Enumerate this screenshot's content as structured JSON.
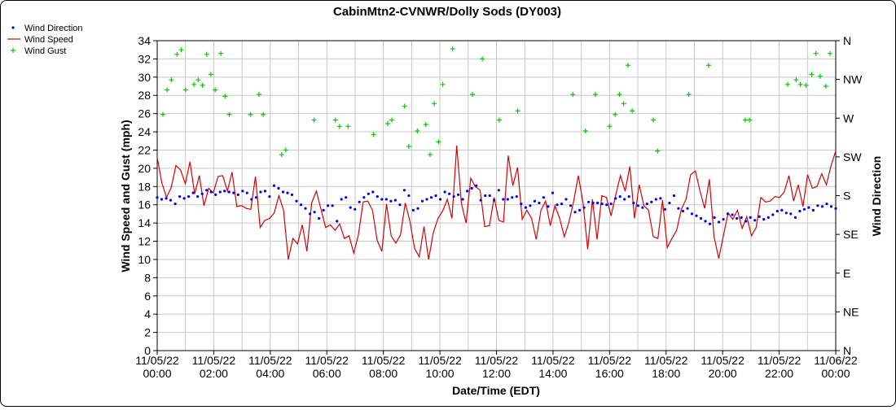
{
  "chart_data": {
    "type": "line",
    "title": "CabinMtn2-CVNWR/Dolly Sods (DY003)",
    "xlabel": "Date/Time (EDT)",
    "ylabel_left": "Wind Speed and Gust (mph)",
    "ylabel_right": "Wind Direction",
    "ylim": [
      0,
      34
    ],
    "xlim_hours": [
      0,
      24
    ],
    "grid": true,
    "legend_position": "top-left",
    "y_ticks": [
      "0",
      "2",
      "4",
      "6",
      "8",
      "10",
      "12",
      "14",
      "16",
      "18",
      "20",
      "22",
      "24",
      "26",
      "28",
      "30",
      "32",
      "34"
    ],
    "y2_ticks": [
      "N",
      "NE",
      "E",
      "SE",
      "S",
      "SW",
      "W",
      "NW",
      "N"
    ],
    "x_tick_labels": [
      [
        "11/05/22",
        "00:00"
      ],
      [
        "11/05/22",
        "02:00"
      ],
      [
        "11/05/22",
        "04:00"
      ],
      [
        "11/05/22",
        "06:00"
      ],
      [
        "11/05/22",
        "08:00"
      ],
      [
        "11/05/22",
        "10:00"
      ],
      [
        "11/05/22",
        "12:00"
      ],
      [
        "11/05/22",
        "14:00"
      ],
      [
        "11/05/22",
        "16:00"
      ],
      [
        "11/05/22",
        "18:00"
      ],
      [
        "11/05/22",
        "20:00"
      ],
      [
        "11/05/22",
        "22:00"
      ],
      [
        "11/06/22",
        "00:00"
      ]
    ],
    "series": [
      {
        "name": "Wind Direction",
        "color": "#0000ff",
        "marker": "dot",
        "values": [
          16.8,
          16.6,
          16.7,
          16.5,
          16.1,
          16.9,
          16.7,
          16.9,
          17.3,
          16.9,
          17.2,
          17.6,
          17.4,
          17.1,
          17.4,
          17.5,
          17.4,
          17.3,
          17.1,
          17.5,
          17.3,
          16.6,
          16.8,
          17.4,
          17.5,
          16.9,
          18.1,
          17.8,
          17.4,
          17.3,
          17.1,
          16.4,
          16.0,
          15.6,
          15.0,
          15.2,
          14.5,
          15.4,
          15.9,
          15.9,
          14.2,
          16.6,
          16.8,
          15.7,
          15.5,
          16.3,
          16.8,
          17.2,
          17.4,
          16.9,
          16.6,
          16.6,
          16.4,
          16.5,
          16.0,
          17.6,
          17.0,
          15.4,
          15.6,
          16.4,
          16.6,
          16.8,
          17.0,
          16.6,
          17.4,
          17.2,
          16.9,
          17.1,
          16.6,
          17.5,
          17.8,
          18.1,
          16.5,
          17.0,
          17.0,
          16.5,
          17.6,
          16.6,
          16.6,
          16.8,
          16.9,
          16.1,
          15.7,
          15.9,
          16.4,
          16.2,
          16.8,
          15.8,
          17.3,
          16.0,
          16.1,
          16.6,
          15.9,
          15.2,
          15.4,
          15.7,
          16.3,
          16.2,
          16.2,
          16.1,
          16.0,
          16.1,
          16.7,
          16.9,
          16.6,
          16.9,
          16.2,
          15.9,
          15.7,
          16.1,
          16.3,
          16.6,
          16.7,
          15.5,
          16.2,
          17.0,
          15.6,
          15.3,
          15.6,
          15.0,
          14.8,
          14.5,
          14.2,
          13.9,
          14.6,
          14.1,
          14.4,
          15.0,
          14.9,
          14.5,
          14.6,
          14.2,
          14.6,
          14.3,
          14.7,
          14.4,
          14.6,
          14.9,
          15.3,
          15.4,
          15.1,
          15.0,
          14.6,
          15.3,
          15.5,
          15.7,
          15.4,
          15.9,
          15.8,
          16.1,
          15.8,
          15.6
        ]
      },
      {
        "name": "Wind Speed",
        "color": "#dd0000",
        "marker": "line",
        "values": [
          21.2,
          18.4,
          16.8,
          17.9,
          20.3,
          19.8,
          18.3,
          20.7,
          17.2,
          19.2,
          15.9,
          17.8,
          17.3,
          19.1,
          19.2,
          17.5,
          19.6,
          15.8,
          15.9,
          15.6,
          15.5,
          19.1,
          13.5,
          14.3,
          14.5,
          15.1,
          17.0,
          15.4,
          10.0,
          12.3,
          11.7,
          13.8,
          10.9,
          16.2,
          17.5,
          15.5,
          13.5,
          13.8,
          13.2,
          13.9,
          12.3,
          12.6,
          10.7,
          12.7,
          16.3,
          16.4,
          15.4,
          12.1,
          10.9,
          16.1,
          12.6,
          11.8,
          12.7,
          16.2,
          14.2,
          11.2,
          10.3,
          13.6,
          10.0,
          12.9,
          14.5,
          15.3,
          16.6,
          14.5,
          22.5,
          16.2,
          14.0,
          18.9,
          18.0,
          17.6,
          13.6,
          13.7,
          16.8,
          14.3,
          14.1,
          21.4,
          18.1,
          20.1,
          14.4,
          15.4,
          14.5,
          12.2,
          15.4,
          16.4,
          13.7,
          15.9,
          14.5,
          12.5,
          14.1,
          16.4,
          19.2,
          16.2,
          11.1,
          16.6,
          12.2,
          17.0,
          16.8,
          14.8,
          17.1,
          19.2,
          17.5,
          20.2,
          14.5,
          18.2,
          15.9,
          15.4,
          12.5,
          12.3,
          16.5,
          11.3,
          12.3,
          13.2,
          15.5,
          16.6,
          19.3,
          19.7,
          17.5,
          15.6,
          18.8,
          12.5,
          10.1,
          12.6,
          15.1,
          14.4,
          15.4,
          13.4,
          14.7,
          12.6,
          13.5,
          16.8,
          16.3,
          16.4,
          16.9,
          16.8,
          17.4,
          19.2,
          16.4,
          18.2,
          15.8,
          19.3,
          17.8,
          18.0,
          19.4,
          18.2,
          20.3,
          21.9
        ]
      },
      {
        "name": "Wind Gust",
        "color": "#00cc00",
        "marker": "plus",
        "points": [
          [
            0.2,
            25.9
          ],
          [
            0.35,
            28.6
          ],
          [
            0.5,
            29.7
          ],
          [
            0.7,
            32.5
          ],
          [
            0.85,
            33.0
          ],
          [
            1.0,
            28.6
          ],
          [
            1.3,
            29.2
          ],
          [
            1.45,
            29.7
          ],
          [
            1.6,
            29.1
          ],
          [
            1.75,
            32.5
          ],
          [
            1.9,
            30.3
          ],
          [
            2.05,
            28.6
          ],
          [
            2.25,
            32.6
          ],
          [
            2.4,
            27.9
          ],
          [
            2.55,
            25.9
          ],
          [
            3.3,
            25.9
          ],
          [
            3.6,
            28.1
          ],
          [
            3.75,
            25.9
          ],
          [
            4.4,
            21.5
          ],
          [
            4.55,
            22.0
          ],
          [
            5.55,
            25.3
          ],
          [
            6.3,
            25.3
          ],
          [
            6.45,
            24.6
          ],
          [
            6.75,
            24.6
          ],
          [
            7.65,
            23.7
          ],
          [
            8.15,
            24.9
          ],
          [
            8.3,
            25.3
          ],
          [
            8.75,
            26.8
          ],
          [
            8.9,
            22.4
          ],
          [
            9.2,
            24.1
          ],
          [
            9.5,
            24.8
          ],
          [
            9.65,
            21.5
          ],
          [
            9.8,
            27.1
          ],
          [
            9.95,
            22.9
          ],
          [
            10.1,
            29.2
          ],
          [
            10.45,
            33.1
          ],
          [
            11.15,
            28.1
          ],
          [
            11.5,
            32.0
          ],
          [
            12.1,
            25.3
          ],
          [
            12.75,
            26.3
          ],
          [
            14.7,
            28.1
          ],
          [
            15.15,
            24.1
          ],
          [
            15.5,
            28.1
          ],
          [
            16.0,
            24.6
          ],
          [
            16.2,
            25.9
          ],
          [
            16.35,
            28.1
          ],
          [
            16.5,
            27.1
          ],
          [
            16.65,
            31.3
          ],
          [
            16.8,
            26.3
          ],
          [
            17.55,
            25.3
          ],
          [
            17.7,
            21.9
          ],
          [
            18.8,
            28.1
          ],
          [
            19.5,
            31.3
          ],
          [
            20.8,
            25.3
          ],
          [
            20.95,
            25.3
          ],
          [
            22.3,
            29.2
          ],
          [
            22.6,
            29.7
          ],
          [
            22.75,
            29.2
          ],
          [
            22.95,
            29.1
          ],
          [
            23.15,
            30.3
          ],
          [
            23.3,
            32.6
          ],
          [
            23.45,
            30.1
          ],
          [
            23.65,
            29.0
          ],
          [
            23.8,
            32.6
          ]
        ]
      }
    ]
  }
}
